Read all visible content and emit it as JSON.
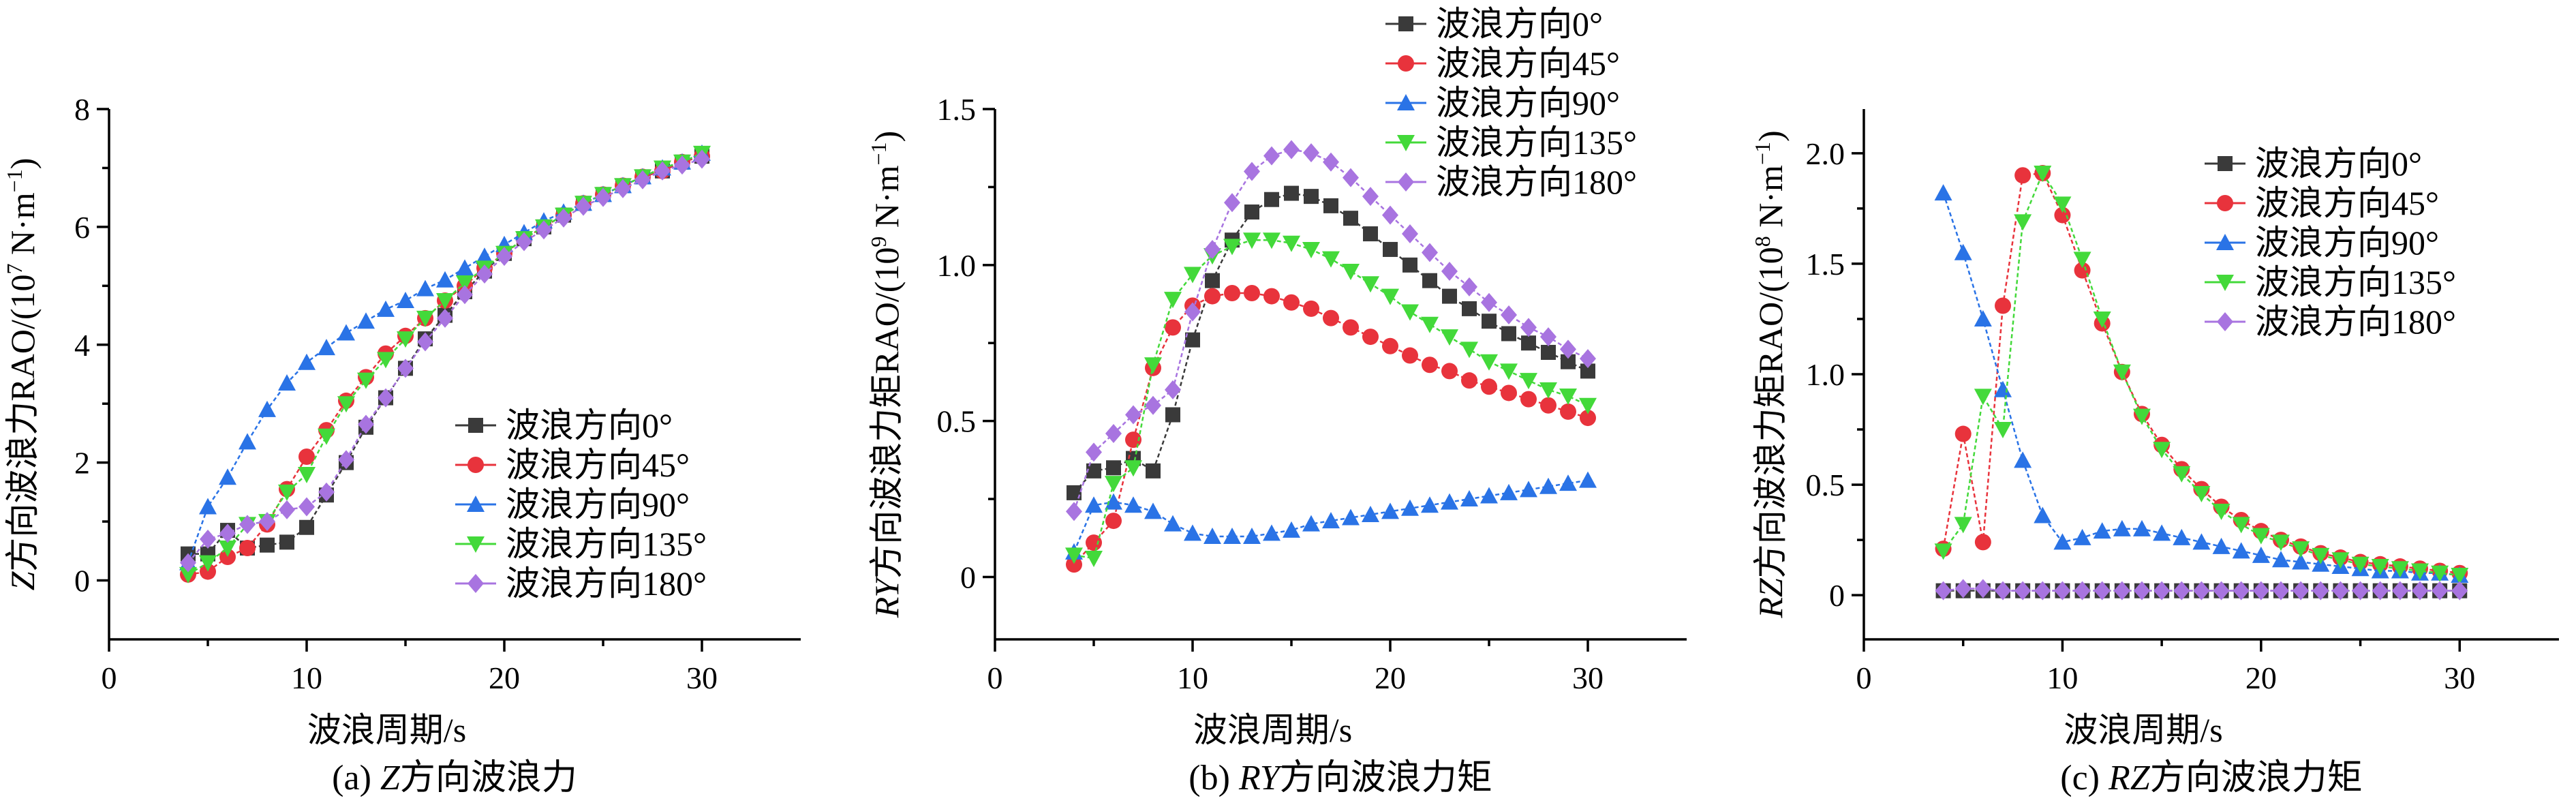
{
  "chart_data": [
    {
      "type": "line",
      "caption_prefix": "(a) ",
      "caption_italic": "Z",
      "caption_suffix": "方向波浪力",
      "ylabel_italic": "Z",
      "ylabel_text": "方向波浪力RAO/(10",
      "ylabel_exp": "7",
      "ylabel_units": " N·m",
      "ylabel_units_exp": "−1",
      "ylabel_close": ")",
      "xlabel": "波浪周期/s",
      "xlim": [
        0,
        35
      ],
      "ylim": [
        -1,
        8
      ],
      "xticks": [
        0,
        10,
        20,
        30
      ],
      "yticks": [
        0,
        2,
        4,
        6,
        8
      ],
      "xtick_labels": [
        "0",
        "10",
        "20",
        "30"
      ],
      "ytick_labels": [
        "0",
        "2",
        "4",
        "6",
        "8"
      ],
      "legend_position": "center-right",
      "x": [
        4,
        5,
        6,
        7,
        8,
        9,
        10,
        11,
        12,
        13,
        14,
        15,
        16,
        17,
        18,
        19,
        20,
        21,
        22,
        23,
        24,
        25,
        26,
        27,
        28,
        29,
        30
      ],
      "series": [
        {
          "name": "波浪方向0°",
          "values": [
            0.45,
            0.45,
            0.85,
            0.55,
            0.6,
            0.65,
            0.9,
            1.45,
            2.0,
            2.6,
            3.1,
            3.6,
            4.1,
            4.5,
            4.9,
            5.25,
            5.55,
            5.8,
            6.0,
            6.2,
            6.4,
            6.55,
            6.7,
            6.85,
            6.95,
            7.1,
            7.2
          ]
        },
        {
          "name": "波浪方向45°",
          "values": [
            0.1,
            0.15,
            0.4,
            0.55,
            0.95,
            1.55,
            2.1,
            2.55,
            3.05,
            3.45,
            3.85,
            4.15,
            4.45,
            4.75,
            5.0,
            5.3,
            5.55,
            5.8,
            6.0,
            6.2,
            6.4,
            6.55,
            6.7,
            6.85,
            6.95,
            7.1,
            7.2
          ]
        },
        {
          "name": "波浪方向90°",
          "values": [
            0.3,
            1.25,
            1.75,
            2.35,
            2.9,
            3.35,
            3.7,
            3.95,
            4.2,
            4.4,
            4.6,
            4.75,
            4.95,
            5.1,
            5.3,
            5.5,
            5.7,
            5.9,
            6.1,
            6.25,
            6.4,
            6.55,
            6.7,
            6.85,
            7.0,
            7.1,
            7.25
          ]
        },
        {
          "name": "波浪方向135°",
          "values": [
            0.1,
            0.3,
            0.55,
            0.95,
            1.0,
            1.5,
            1.8,
            2.45,
            3.0,
            3.4,
            3.75,
            4.1,
            4.45,
            4.75,
            5.05,
            5.3,
            5.55,
            5.8,
            6.0,
            6.2,
            6.4,
            6.55,
            6.7,
            6.85,
            7.0,
            7.1,
            7.25
          ]
        },
        {
          "name": "波浪方向180°",
          "values": [
            0.3,
            0.7,
            0.8,
            0.95,
            1.0,
            1.2,
            1.25,
            1.5,
            2.05,
            2.65,
            3.1,
            3.6,
            4.05,
            4.45,
            4.85,
            5.2,
            5.5,
            5.75,
            5.95,
            6.15,
            6.35,
            6.5,
            6.65,
            6.8,
            6.95,
            7.05,
            7.15
          ]
        }
      ]
    },
    {
      "type": "line",
      "caption_prefix": "(b) ",
      "caption_italic": "RY",
      "caption_suffix": "方向波浪力矩",
      "ylabel_italic": "RY",
      "ylabel_text": "方向波浪力矩RAO/(10",
      "ylabel_exp": "9",
      "ylabel_units": " N·m",
      "ylabel_units_exp": "−1",
      "ylabel_close": ")",
      "xlabel": "波浪周期/s",
      "xlim": [
        0,
        35
      ],
      "ylim": [
        -0.2,
        1.5
      ],
      "xticks": [
        0,
        10,
        20,
        30
      ],
      "yticks": [
        0,
        0.5,
        1.0,
        1.5
      ],
      "xtick_labels": [
        "0",
        "10",
        "20",
        "30"
      ],
      "ytick_labels": [
        "0",
        "0.5",
        "1.0",
        "1.5"
      ],
      "legend_position": "top-right",
      "x": [
        4,
        5,
        6,
        7,
        8,
        9,
        10,
        11,
        12,
        13,
        14,
        15,
        16,
        17,
        18,
        19,
        20,
        21,
        22,
        23,
        24,
        25,
        26,
        27,
        28,
        29,
        30
      ],
      "series": [
        {
          "name": "波浪方向0°",
          "values": [
            0.27,
            0.34,
            0.35,
            0.38,
            0.34,
            0.52,
            0.76,
            0.95,
            1.08,
            1.17,
            1.21,
            1.23,
            1.22,
            1.19,
            1.15,
            1.1,
            1.05,
            1.0,
            0.95,
            0.9,
            0.86,
            0.82,
            0.78,
            0.75,
            0.72,
            0.69,
            0.66
          ]
        },
        {
          "name": "波浪方向45°",
          "values": [
            0.04,
            0.11,
            0.18,
            0.44,
            0.67,
            0.8,
            0.87,
            0.9,
            0.91,
            0.91,
            0.9,
            0.88,
            0.86,
            0.83,
            0.8,
            0.77,
            0.74,
            0.71,
            0.68,
            0.66,
            0.63,
            0.61,
            0.59,
            0.57,
            0.55,
            0.53,
            0.51
          ]
        },
        {
          "name": "波浪方向90°",
          "values": [
            0.08,
            0.23,
            0.24,
            0.23,
            0.21,
            0.17,
            0.14,
            0.13,
            0.13,
            0.13,
            0.14,
            0.15,
            0.17,
            0.18,
            0.19,
            0.2,
            0.21,
            0.22,
            0.23,
            0.24,
            0.25,
            0.26,
            0.27,
            0.28,
            0.29,
            0.3,
            0.31
          ]
        },
        {
          "name": "波浪方向135°",
          "values": [
            0.07,
            0.06,
            0.3,
            0.35,
            0.68,
            0.89,
            0.97,
            1.03,
            1.06,
            1.08,
            1.08,
            1.07,
            1.05,
            1.02,
            0.98,
            0.94,
            0.9,
            0.85,
            0.81,
            0.77,
            0.73,
            0.69,
            0.66,
            0.63,
            0.6,
            0.58,
            0.55
          ]
        },
        {
          "name": "波浪方向180°",
          "values": [
            0.21,
            0.4,
            0.46,
            0.52,
            0.55,
            0.6,
            0.85,
            1.05,
            1.2,
            1.3,
            1.35,
            1.37,
            1.36,
            1.33,
            1.28,
            1.22,
            1.16,
            1.1,
            1.04,
            0.98,
            0.93,
            0.88,
            0.84,
            0.8,
            0.77,
            0.73,
            0.7
          ]
        }
      ]
    },
    {
      "type": "line",
      "caption_prefix": "(c) ",
      "caption_italic": "RZ",
      "caption_suffix": "方向波浪力矩",
      "ylabel_italic": "RZ",
      "ylabel_text": "方向波浪力矩RAO/(10",
      "ylabel_exp": "8",
      "ylabel_units": " N·m",
      "ylabel_units_exp": "−1",
      "ylabel_close": ")",
      "xlabel": "波浪周期/s",
      "xlim": [
        0,
        35
      ],
      "ylim": [
        -0.2,
        2.2
      ],
      "xticks": [
        0,
        10,
        20,
        30
      ],
      "yticks": [
        0,
        0.5,
        1.0,
        1.5,
        2.0
      ],
      "xtick_labels": [
        "0",
        "10",
        "20",
        "30"
      ],
      "ytick_labels": [
        "0",
        "0.5",
        "1.0",
        "1.5",
        "2.0"
      ],
      "legend_position": "top-right",
      "x": [
        4,
        5,
        6,
        7,
        8,
        9,
        10,
        11,
        12,
        13,
        14,
        15,
        16,
        17,
        18,
        19,
        20,
        21,
        22,
        23,
        24,
        25,
        26,
        27,
        28,
        29,
        30
      ],
      "series": [
        {
          "name": "波浪方向0°",
          "values": [
            0.02,
            0.02,
            0.02,
            0.02,
            0.02,
            0.02,
            0.02,
            0.02,
            0.02,
            0.02,
            0.02,
            0.02,
            0.02,
            0.02,
            0.02,
            0.02,
            0.02,
            0.02,
            0.02,
            0.02,
            0.02,
            0.02,
            0.02,
            0.02,
            0.02,
            0.02,
            0.02
          ]
        },
        {
          "name": "波浪方向45°",
          "values": [
            0.21,
            0.73,
            0.24,
            1.31,
            1.9,
            1.91,
            1.72,
            1.47,
            1.23,
            1.01,
            0.82,
            0.68,
            0.57,
            0.48,
            0.4,
            0.34,
            0.29,
            0.25,
            0.22,
            0.19,
            0.17,
            0.15,
            0.14,
            0.13,
            0.12,
            0.11,
            0.1
          ]
        },
        {
          "name": "波浪方向90°",
          "values": [
            1.82,
            1.55,
            1.25,
            0.93,
            0.61,
            0.36,
            0.24,
            0.26,
            0.29,
            0.3,
            0.3,
            0.28,
            0.26,
            0.24,
            0.22,
            0.2,
            0.18,
            0.16,
            0.15,
            0.14,
            0.13,
            0.12,
            0.11,
            0.11,
            0.1,
            0.1,
            0.09
          ]
        },
        {
          "name": "波浪方向135°",
          "values": [
            0.2,
            0.32,
            0.9,
            0.75,
            1.69,
            1.91,
            1.77,
            1.52,
            1.25,
            1.01,
            0.81,
            0.66,
            0.55,
            0.46,
            0.38,
            0.32,
            0.27,
            0.24,
            0.21,
            0.18,
            0.16,
            0.14,
            0.13,
            0.12,
            0.11,
            0.1,
            0.09
          ]
        },
        {
          "name": "波浪方向180°",
          "values": [
            0.02,
            0.03,
            0.03,
            0.02,
            0.02,
            0.02,
            0.02,
            0.02,
            0.02,
            0.02,
            0.02,
            0.02,
            0.02,
            0.02,
            0.02,
            0.02,
            0.02,
            0.02,
            0.02,
            0.02,
            0.02,
            0.02,
            0.02,
            0.02,
            0.02,
            0.02,
            0.02
          ]
        }
      ]
    }
  ],
  "series_styles": [
    {
      "color": "#3a3a3a",
      "marker": "square"
    },
    {
      "color": "#e8333c",
      "marker": "circle"
    },
    {
      "color": "#2a73e6",
      "marker": "triangle-up"
    },
    {
      "color": "#43d93a",
      "marker": "triangle-down"
    },
    {
      "color": "#a874e0",
      "marker": "diamond"
    }
  ]
}
